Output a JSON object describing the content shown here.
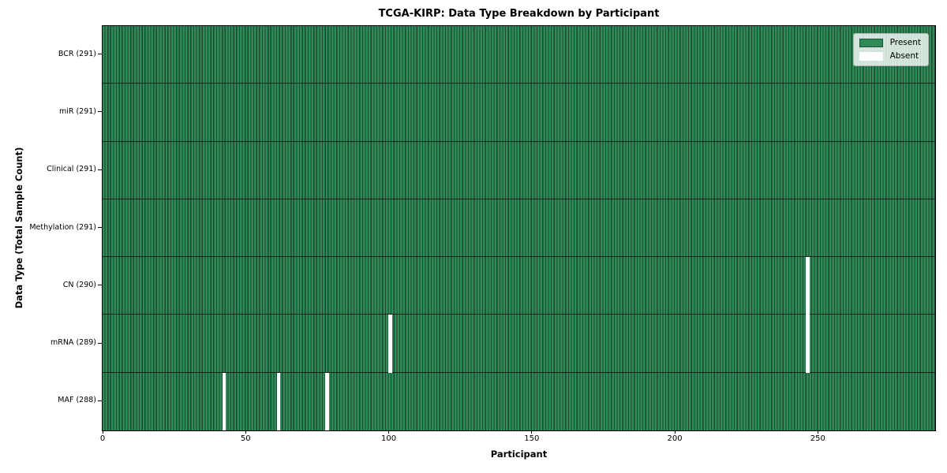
{
  "chart_data": {
    "type": "heatmap",
    "title": "TCGA-KIRP: Data Type Breakdown by Participant",
    "xlabel": "Participant",
    "ylabel": "Data Type (Total Sample Count)",
    "n_participants": 291,
    "xlim": [
      0,
      291
    ],
    "x_ticks": [
      0,
      50,
      100,
      150,
      200,
      250
    ],
    "legend": [
      {
        "label": "Present",
        "color": "#2E8B57"
      },
      {
        "label": "Absent",
        "color": "#ffffff"
      }
    ],
    "rows": [
      {
        "label": "BCR (291)",
        "data_type": "BCR",
        "total_sample_count": 291,
        "absent_participants": []
      },
      {
        "label": "miR (291)",
        "data_type": "miR",
        "total_sample_count": 291,
        "absent_participants": []
      },
      {
        "label": "Clinical (291)",
        "data_type": "Clinical",
        "total_sample_count": 291,
        "absent_participants": []
      },
      {
        "label": "Methylation (291)",
        "data_type": "Methylation",
        "total_sample_count": 291,
        "absent_participants": []
      },
      {
        "label": "CN (290)",
        "data_type": "CN",
        "total_sample_count": 290,
        "absent_participants": [
          246
        ]
      },
      {
        "label": "mRNA (289)",
        "data_type": "mRNA",
        "total_sample_count": 289,
        "absent_participants": [
          100,
          246
        ]
      },
      {
        "label": "MAF (288)",
        "data_type": "MAF",
        "total_sample_count": 288,
        "absent_participants": [
          42,
          61,
          78
        ]
      }
    ],
    "colors": {
      "present_fill": "#2E8B57",
      "cell_edge": "#1c4a31",
      "row_separator": "#0a140c",
      "absent_fill": "#ffffff"
    },
    "legend_position": "upper right",
    "grid": "cell-edges"
  }
}
